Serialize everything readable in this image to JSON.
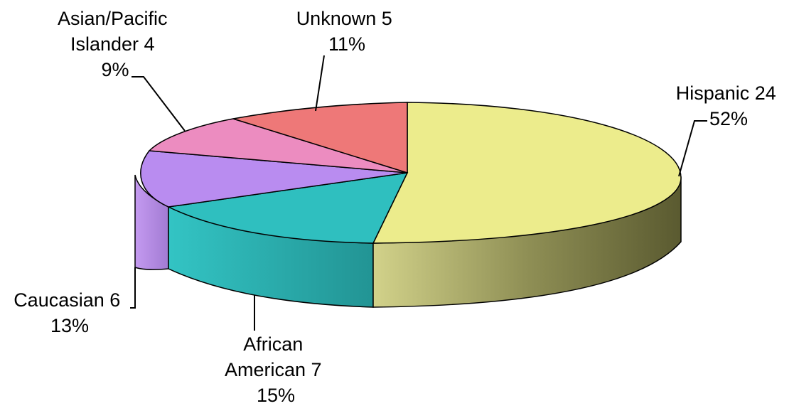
{
  "chart_data": {
    "type": "pie",
    "title": "",
    "three_d": true,
    "slices": [
      {
        "name": "Hispanic",
        "value": 24,
        "percent": "52%",
        "label_lines": [
          "Hispanic 24",
          "52%"
        ],
        "color": "#ecec8c",
        "side_color": "#8f8f4a"
      },
      {
        "name": "African American",
        "value": 7,
        "percent": "15%",
        "label_lines": [
          "African",
          "American 7",
          "15%"
        ],
        "color": "#2fbfbf",
        "side_color": "#2aa4a4"
      },
      {
        "name": "Caucasian",
        "value": 6,
        "percent": "13%",
        "label_lines": [
          "Caucasian 6",
          "13%"
        ],
        "color": "#b98cf0",
        "side_color": "#a77fd8"
      },
      {
        "name": "Asian/Pacific Islander",
        "value": 4,
        "percent": "9%",
        "label_lines": [
          "Asian/Pacific",
          "Islander 4",
          "9%"
        ],
        "color": "#ec8cc0",
        "side_color": "#c974a2"
      },
      {
        "name": "Unknown",
        "value": 5,
        "percent": "11%",
        "label_lines": [
          "Unknown 5",
          "11%"
        ],
        "color": "#ee7878",
        "side_color": "#c86262"
      }
    ]
  }
}
